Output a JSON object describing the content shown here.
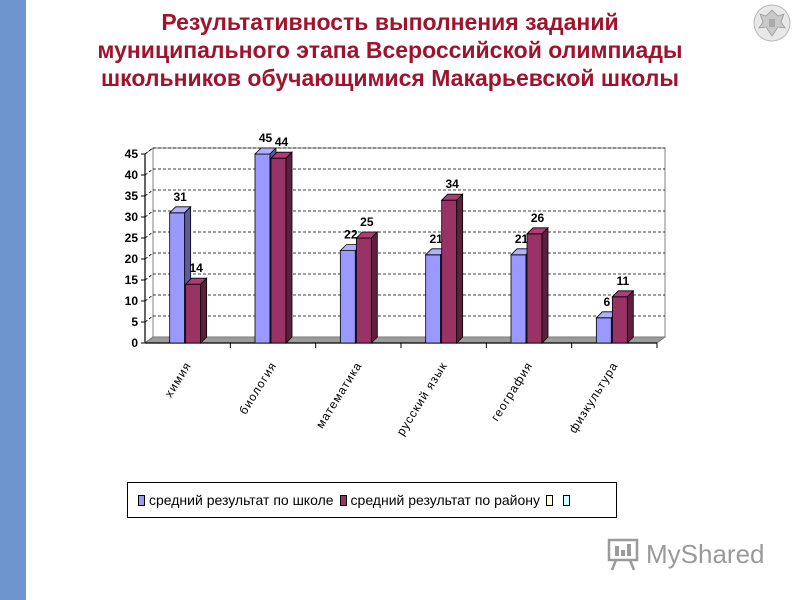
{
  "slide": {
    "title_lines": [
      "Результативность выполнения заданий",
      "муниципального этапа Всероссийской олимпиады",
      "школьников обучающимися  Макарьевской школы"
    ],
    "emblem_icon": "coat-of-arms-icon",
    "watermark_logo": "myshared-logo"
  },
  "colors": {
    "accent_bar": "#6f95cf",
    "title": "#a0132c",
    "series1": "#9999ff",
    "series2": "#993366"
  },
  "chart_data": {
    "type": "bar",
    "variant": "3d-clustered",
    "categories": [
      "химия",
      "биология",
      "математика",
      "русский язык",
      "география",
      "физкультура"
    ],
    "series": [
      {
        "name": "средний результат по школе",
        "values": [
          31,
          45,
          22,
          21,
          21,
          6
        ],
        "labels": [
          "31",
          "45",
          "22",
          "21",
          "21",
          "6"
        ]
      },
      {
        "name": "средний результат по району",
        "values": [
          14,
          44,
          25,
          34,
          26,
          11
        ],
        "labels": [
          "14",
          "44",
          "25",
          "34",
          "26",
          "11"
        ]
      }
    ],
    "extra_legend_entries": [
      "",
      ""
    ],
    "yticks": [
      "0",
      "5",
      "10",
      "15",
      "20",
      "25",
      "30",
      "35",
      "40",
      "45"
    ],
    "ylim": [
      0,
      45
    ],
    "grid": "horizontal-dashed",
    "legend_position": "bottom"
  }
}
